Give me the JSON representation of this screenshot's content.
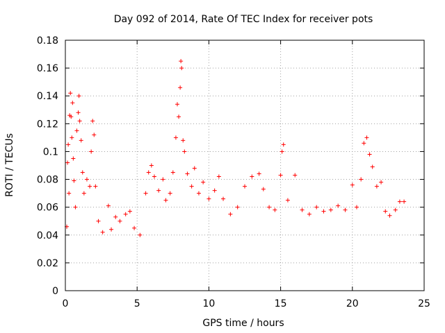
{
  "chart_data": {
    "type": "scatter",
    "title": "Day 092 of 2014, Rate Of TEC Index for receiver pots",
    "xlabel": "GPS time / hours",
    "ylabel": "ROTI / TECUs",
    "xlim": [
      0,
      25
    ],
    "ylim": [
      0,
      0.18
    ],
    "xticks": [
      0,
      5,
      10,
      15,
      20,
      25
    ],
    "yticks": [
      0,
      0.02,
      0.04,
      0.06,
      0.08,
      0.1,
      0.12,
      0.14,
      0.16,
      0.18
    ],
    "xtick_labels": [
      "0",
      "5",
      "10",
      "15",
      "20",
      "25"
    ],
    "ytick_labels": [
      "0",
      "0.02",
      "0.04",
      "0.06",
      "0.08",
      "0.1",
      "0.12",
      "0.14",
      "0.16",
      "0.18"
    ],
    "grid": true,
    "marker": "+",
    "color": "#ff0000",
    "series": [
      {
        "name": "ROTI",
        "points": [
          [
            0.1,
            0.046
          ],
          [
            0.15,
            0.092
          ],
          [
            0.2,
            0.105
          ],
          [
            0.25,
            0.07
          ],
          [
            0.3,
            0.126
          ],
          [
            0.35,
            0.142
          ],
          [
            0.4,
            0.125
          ],
          [
            0.45,
            0.11
          ],
          [
            0.5,
            0.135
          ],
          [
            0.55,
            0.095
          ],
          [
            0.6,
            0.079
          ],
          [
            0.7,
            0.06
          ],
          [
            0.8,
            0.115
          ],
          [
            0.9,
            0.128
          ],
          [
            0.95,
            0.14
          ],
          [
            1.0,
            0.122
          ],
          [
            1.1,
            0.108
          ],
          [
            1.2,
            0.085
          ],
          [
            1.3,
            0.07
          ],
          [
            1.5,
            0.08
          ],
          [
            1.7,
            0.075
          ],
          [
            1.8,
            0.1
          ],
          [
            1.9,
            0.122
          ],
          [
            2.0,
            0.112
          ],
          [
            2.1,
            0.075
          ],
          [
            2.3,
            0.05
          ],
          [
            2.6,
            0.042
          ],
          [
            3.0,
            0.061
          ],
          [
            3.2,
            0.044
          ],
          [
            3.5,
            0.053
          ],
          [
            3.8,
            0.05
          ],
          [
            4.2,
            0.055
          ],
          [
            4.5,
            0.057
          ],
          [
            4.8,
            0.045
          ],
          [
            5.2,
            0.04
          ],
          [
            5.6,
            0.07
          ],
          [
            5.8,
            0.085
          ],
          [
            6.0,
            0.09
          ],
          [
            6.2,
            0.082
          ],
          [
            6.5,
            0.072
          ],
          [
            6.8,
            0.08
          ],
          [
            7.0,
            0.065
          ],
          [
            7.3,
            0.07
          ],
          [
            7.5,
            0.085
          ],
          [
            7.7,
            0.11
          ],
          [
            7.8,
            0.134
          ],
          [
            7.9,
            0.125
          ],
          [
            8.0,
            0.146
          ],
          [
            8.05,
            0.165
          ],
          [
            8.1,
            0.16
          ],
          [
            8.2,
            0.108
          ],
          [
            8.3,
            0.1
          ],
          [
            8.5,
            0.084
          ],
          [
            8.8,
            0.075
          ],
          [
            9.0,
            0.088
          ],
          [
            9.3,
            0.07
          ],
          [
            9.6,
            0.078
          ],
          [
            10.0,
            0.066
          ],
          [
            10.4,
            0.072
          ],
          [
            10.7,
            0.082
          ],
          [
            11.0,
            0.066
          ],
          [
            11.5,
            0.055
          ],
          [
            12.0,
            0.06
          ],
          [
            12.5,
            0.075
          ],
          [
            13.0,
            0.082
          ],
          [
            13.5,
            0.084
          ],
          [
            13.8,
            0.073
          ],
          [
            14.2,
            0.06
          ],
          [
            14.6,
            0.058
          ],
          [
            15.0,
            0.083
          ],
          [
            15.1,
            0.1
          ],
          [
            15.2,
            0.105
          ],
          [
            15.5,
            0.065
          ],
          [
            16.0,
            0.083
          ],
          [
            16.5,
            0.058
          ],
          [
            17.0,
            0.055
          ],
          [
            17.5,
            0.06
          ],
          [
            18.0,
            0.057
          ],
          [
            18.5,
            0.058
          ],
          [
            19.0,
            0.061
          ],
          [
            19.5,
            0.058
          ],
          [
            20.0,
            0.076
          ],
          [
            20.3,
            0.06
          ],
          [
            20.6,
            0.08
          ],
          [
            20.8,
            0.106
          ],
          [
            21.0,
            0.11
          ],
          [
            21.2,
            0.098
          ],
          [
            21.4,
            0.089
          ],
          [
            21.7,
            0.075
          ],
          [
            22.0,
            0.078
          ],
          [
            22.3,
            0.057
          ],
          [
            22.6,
            0.054
          ],
          [
            23.0,
            0.058
          ],
          [
            23.3,
            0.064
          ],
          [
            23.6,
            0.064
          ]
        ]
      }
    ]
  }
}
